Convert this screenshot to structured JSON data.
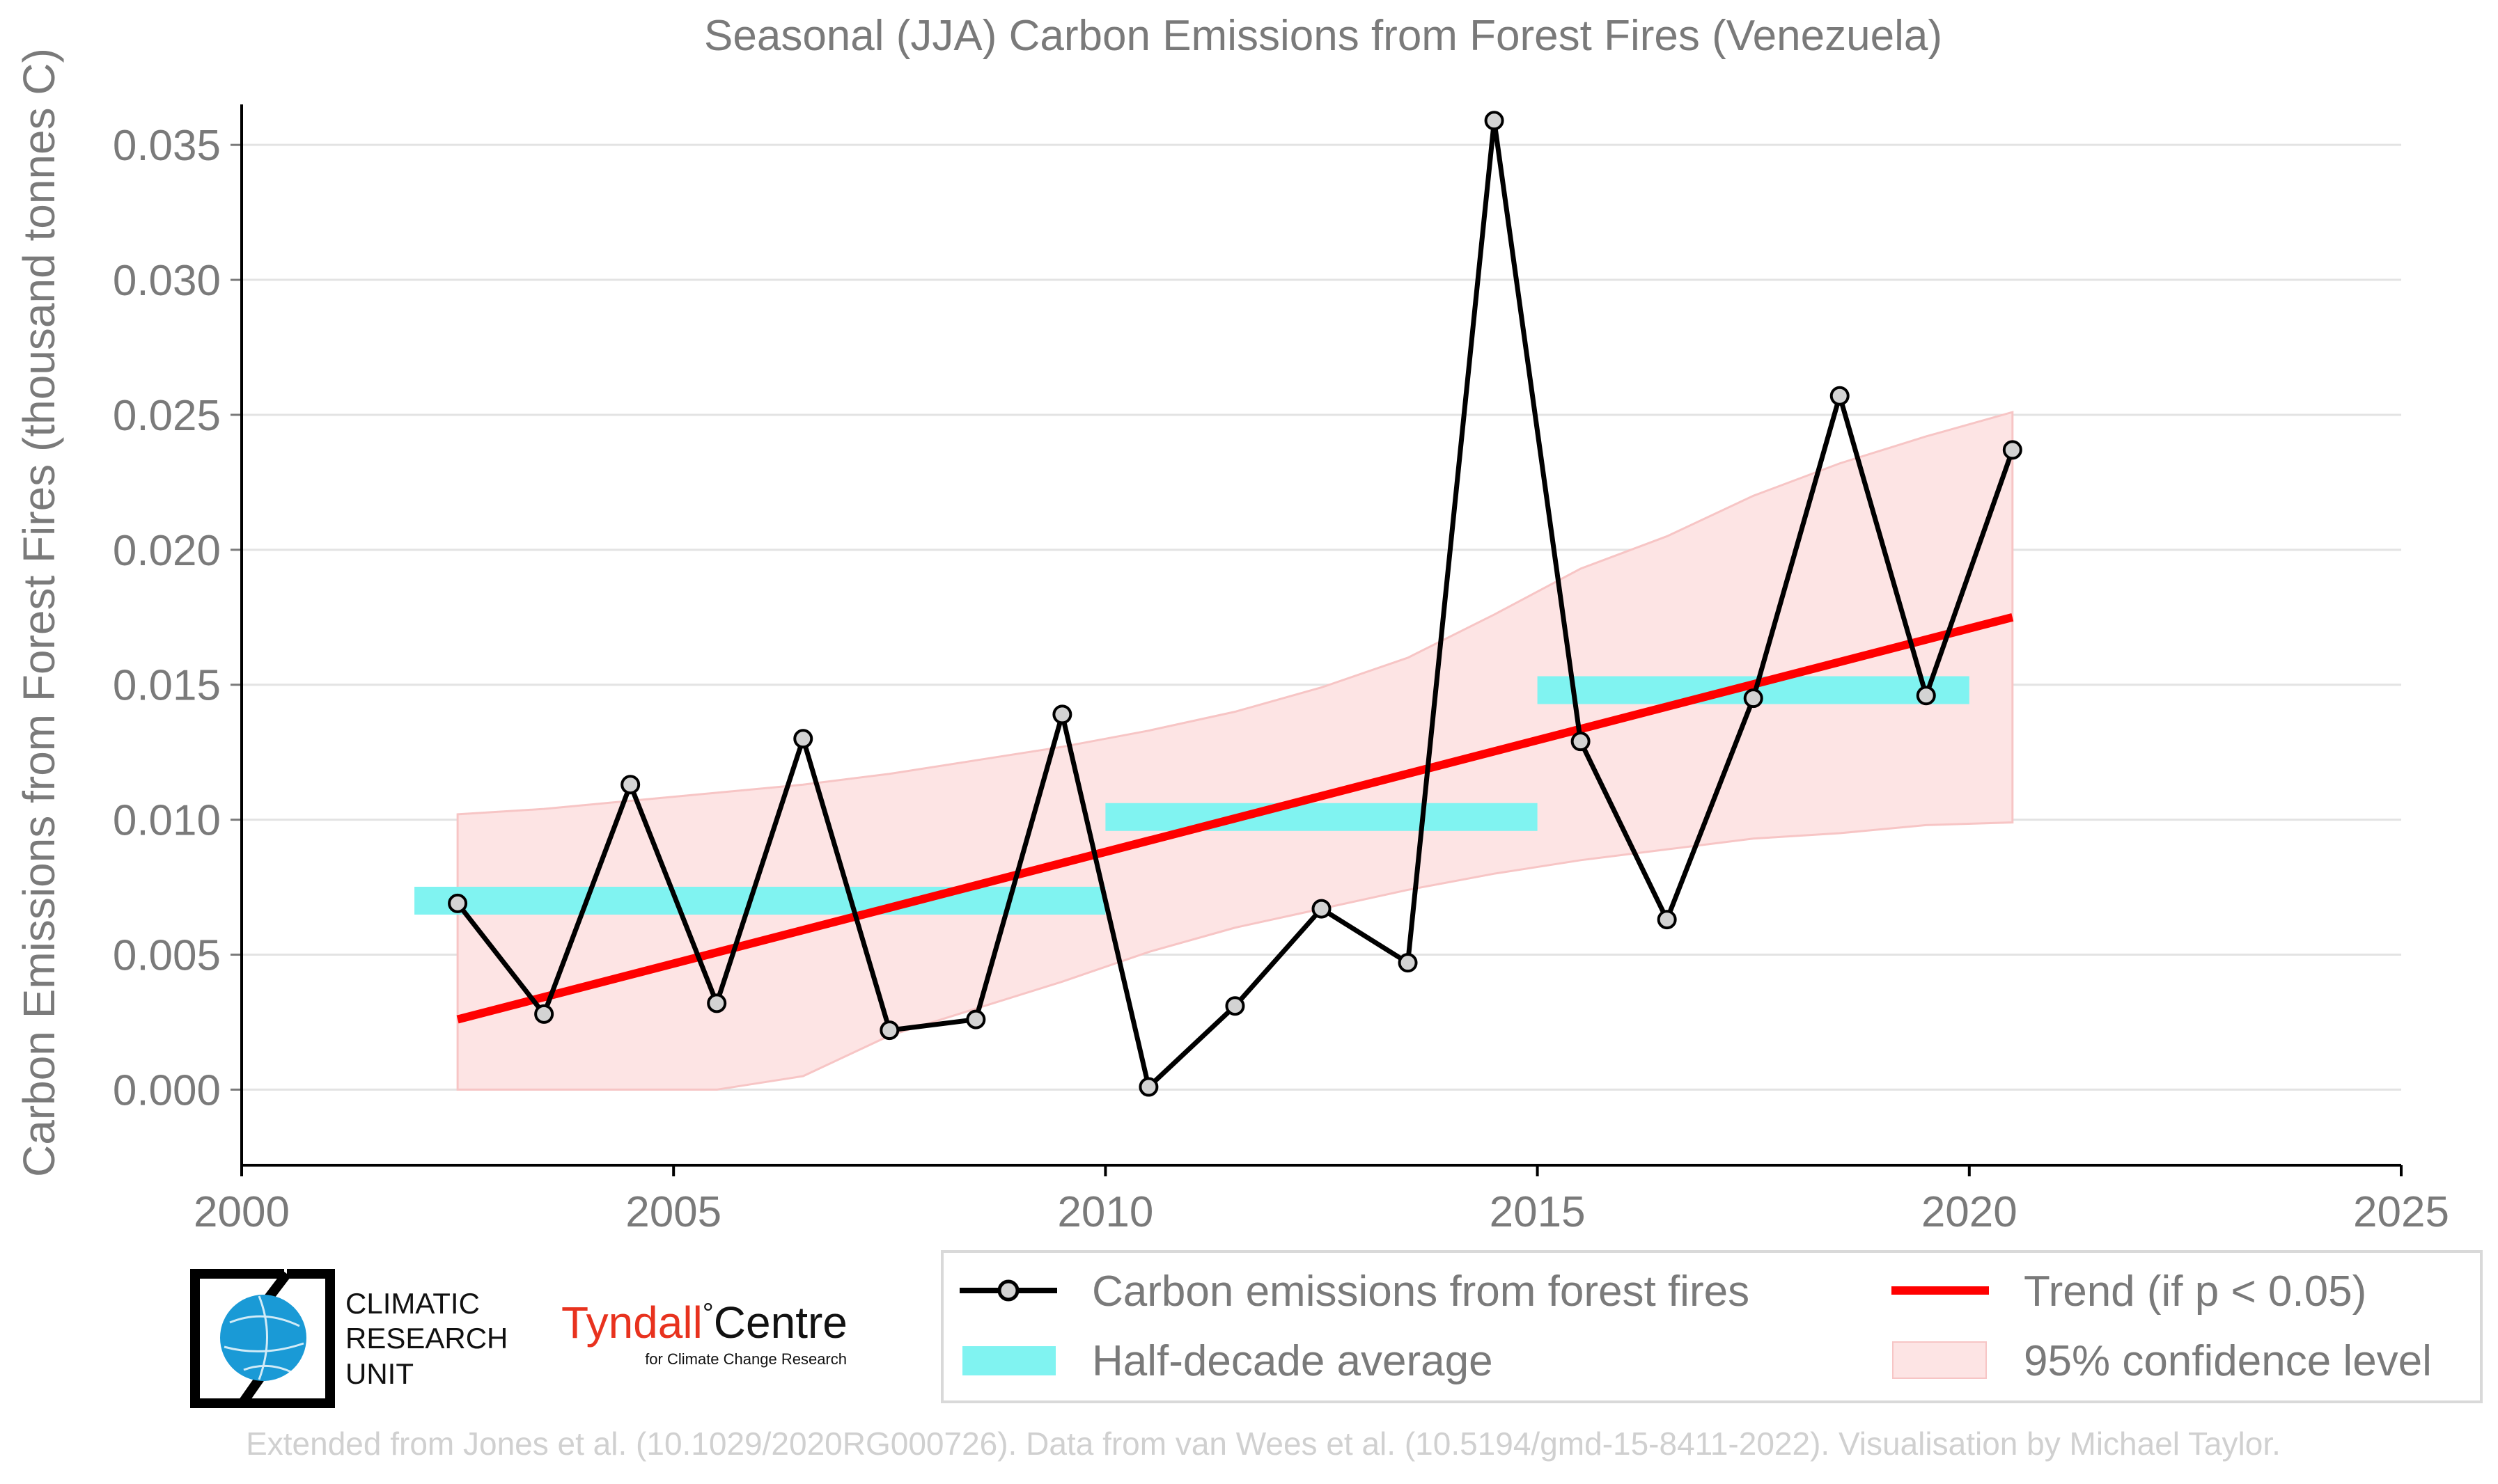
{
  "chart_data": {
    "type": "line",
    "title": "Seasonal (JJA) Carbon Emissions from Forest Fires (Venezuela)",
    "xlabel": "",
    "ylabel": "Carbon Emissions from Forest Fires (thousand tonnes C)",
    "xlim": [
      2000,
      2025
    ],
    "ylim": [
      -0.0028,
      0.0365
    ],
    "x_ticks": [
      2000,
      2005,
      2010,
      2015,
      2020,
      2025
    ],
    "x_tick_labels": [
      "2000",
      "2005",
      "2010",
      "2015",
      "2020",
      "2025"
    ],
    "y_ticks": [
      0.0,
      0.005,
      0.01,
      0.015,
      0.02,
      0.025,
      0.03,
      0.035
    ],
    "y_tick_labels": [
      "0.000",
      "0.005",
      "0.010",
      "0.015",
      "0.020",
      "0.025",
      "0.030",
      "0.035"
    ],
    "grid": true,
    "series": [
      {
        "name": "Carbon emissions from forest fires",
        "kind": "line-markers",
        "color": "#000000",
        "x": [
          2002.5,
          2003.5,
          2004.5,
          2005.5,
          2006.5,
          2007.5,
          2008.5,
          2009.5,
          2010.5,
          2011.5,
          2012.5,
          2013.5,
          2014.5,
          2015.5,
          2016.5,
          2017.5,
          2018.5,
          2019.5,
          2020.5
        ],
        "values": [
          0.0069,
          0.0028,
          0.0113,
          0.0032,
          0.013,
          0.0022,
          0.0026,
          0.0139,
          0.0001,
          0.0031,
          0.0067,
          0.0047,
          0.0359,
          0.0129,
          0.0063,
          0.0145,
          0.0257,
          0.0146,
          0.0237
        ]
      },
      {
        "name": "Half-decade average",
        "kind": "bars",
        "color": "#80f3f1",
        "segments": [
          {
            "x0": 2002.0,
            "x1": 2010.0,
            "value": 0.007
          },
          {
            "x0": 2010.0,
            "x1": 2015.0,
            "value": 0.0101
          },
          {
            "x0": 2015.0,
            "x1": 2020.0,
            "value": 0.0148
          }
        ]
      },
      {
        "name": "Trend (if p < 0.05)",
        "kind": "line",
        "color": "#ff0000",
        "x": [
          2002.5,
          2020.5
        ],
        "values": [
          0.0026,
          0.0175
        ]
      },
      {
        "name": "95% confidence level",
        "kind": "band",
        "color": "#fde4e4",
        "x": [
          2002.5,
          2003.5,
          2004.5,
          2005.5,
          2006.5,
          2007.5,
          2008.5,
          2009.5,
          2010.5,
          2011.5,
          2012.5,
          2013.5,
          2014.5,
          2015.5,
          2016.5,
          2017.5,
          2018.5,
          2019.5,
          2020.5
        ],
        "upper": [
          0.0102,
          0.0104,
          0.0107,
          0.011,
          0.0113,
          0.0117,
          0.0122,
          0.0127,
          0.0133,
          0.014,
          0.0149,
          0.016,
          0.0176,
          0.0193,
          0.0205,
          0.022,
          0.0232,
          0.0242,
          0.0251
        ],
        "lower": [
          0.0,
          0.0,
          0.0,
          0.0,
          0.0005,
          0.002,
          0.003,
          0.004,
          0.0051,
          0.006,
          0.0067,
          0.0074,
          0.008,
          0.0085,
          0.0089,
          0.0093,
          0.0095,
          0.0098,
          0.0099
        ]
      }
    ],
    "legend": {
      "placement": "bottom-right",
      "entries": [
        "Carbon emissions from forest fires",
        "Trend (if p < 0.05)",
        "Half-decade average",
        "95% confidence level"
      ]
    },
    "annotations": {
      "footer": "Extended from Jones et al. (10.1029/2020RG000726). Data from van Wees et al. (10.5194/gmd-15-8411-2022). Visualisation by Michael Taylor."
    }
  },
  "logos": {
    "cru": {
      "line1": "CLIMATIC",
      "line2": "RESEARCH",
      "line3": "UNIT"
    },
    "tyndall": {
      "main": "Tyndall",
      "degree": "°",
      "centre": "Centre",
      "sub": "for Climate Change Research"
    }
  },
  "colors": {
    "axis_text": "#7a7a7a",
    "emissions": "#000000",
    "marker_fill": "#d3d3d3",
    "half_decade": "#80f3f1",
    "trend": "#ff0000",
    "confidence": "#fde4e4",
    "cru_globe": "#1a9ad6",
    "tyndall_red": "#e8321e"
  }
}
